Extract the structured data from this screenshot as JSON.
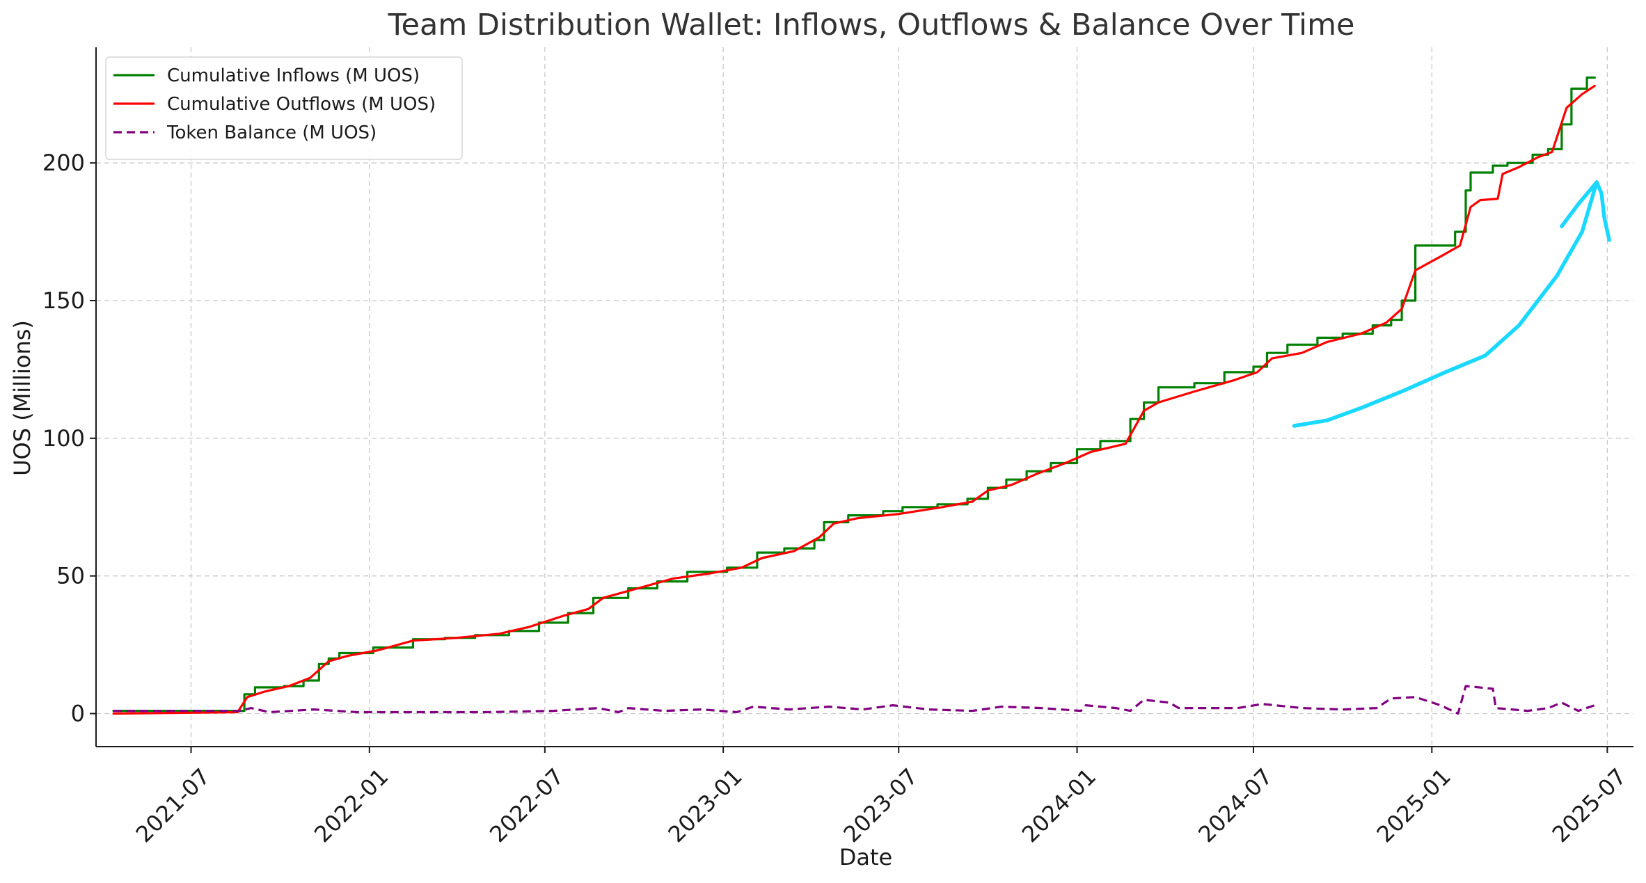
{
  "chart_data": {
    "type": "line",
    "title": "Team Distribution Wallet: Inflows, Outflows & Balance Over Time",
    "xlabel": "Date",
    "ylabel": "UOS (Millions)",
    "x_range": [
      "2021-03-25",
      "2025-07-28"
    ],
    "ylim": [
      -12,
      242
    ],
    "x_ticks": [
      "2021-07",
      "2022-01",
      "2022-07",
      "2023-01",
      "2023-07",
      "2024-01",
      "2024-07",
      "2025-01",
      "2025-07"
    ],
    "y_ticks": [
      0,
      50,
      100,
      150,
      200
    ],
    "grid": true,
    "legend_position": "top-left",
    "series": [
      {
        "name": "Cumulative Inflows (M UOS)",
        "color": "#008000",
        "style": "step",
        "points": [
          [
            "2021-04-12",
            1
          ],
          [
            "2021-08-18",
            1
          ],
          [
            "2021-08-25",
            7
          ],
          [
            "2021-09-05",
            9.5
          ],
          [
            "2021-10-05",
            10
          ],
          [
            "2021-10-25",
            12
          ],
          [
            "2021-11-10",
            18
          ],
          [
            "2021-11-20",
            20
          ],
          [
            "2021-12-01",
            22
          ],
          [
            "2022-01-05",
            24
          ],
          [
            "2022-02-15",
            27
          ],
          [
            "2022-03-20",
            27.5
          ],
          [
            "2022-04-20",
            28.5
          ],
          [
            "2022-05-25",
            30
          ],
          [
            "2022-06-25",
            33
          ],
          [
            "2022-07-25",
            36.5
          ],
          [
            "2022-08-20",
            42
          ],
          [
            "2022-09-25",
            45.5
          ],
          [
            "2022-10-25",
            48
          ],
          [
            "2022-11-25",
            51.5
          ],
          [
            "2023-01-05",
            53
          ],
          [
            "2023-02-05",
            58.5
          ],
          [
            "2023-03-05",
            60
          ],
          [
            "2023-04-05",
            63
          ],
          [
            "2023-04-15",
            69.5
          ],
          [
            "2023-05-10",
            72
          ],
          [
            "2023-06-15",
            73.5
          ],
          [
            "2023-07-05",
            75
          ],
          [
            "2023-08-10",
            76
          ],
          [
            "2023-09-10",
            78
          ],
          [
            "2023-10-01",
            82
          ],
          [
            "2023-10-20",
            85
          ],
          [
            "2023-11-10",
            88
          ],
          [
            "2023-12-05",
            91
          ],
          [
            "2024-01-01",
            96
          ],
          [
            "2024-01-25",
            99
          ],
          [
            "2024-02-25",
            107
          ],
          [
            "2024-03-10",
            113
          ],
          [
            "2024-03-25",
            118.5
          ],
          [
            "2024-05-01",
            120
          ],
          [
            "2024-06-01",
            124
          ],
          [
            "2024-07-01",
            126
          ],
          [
            "2024-07-15",
            131
          ],
          [
            "2024-08-05",
            134
          ],
          [
            "2024-09-05",
            136.5
          ],
          [
            "2024-10-01",
            138
          ],
          [
            "2024-11-01",
            141
          ],
          [
            "2024-11-20",
            143
          ],
          [
            "2024-12-01",
            150
          ],
          [
            "2024-12-15",
            170
          ],
          [
            "2025-01-25",
            175
          ],
          [
            "2025-02-05",
            190
          ],
          [
            "2025-02-10",
            196.5
          ],
          [
            "2025-03-05",
            199
          ],
          [
            "2025-03-20",
            200
          ],
          [
            "2025-04-15",
            203
          ],
          [
            "2025-05-01",
            205
          ],
          [
            "2025-05-15",
            214
          ],
          [
            "2025-05-25",
            227
          ],
          [
            "2025-06-10",
            231
          ],
          [
            "2025-06-18",
            231
          ]
        ]
      },
      {
        "name": "Cumulative Outflows (M UOS)",
        "color": "#ff0000",
        "style": "line",
        "points": [
          [
            "2021-04-12",
            0
          ],
          [
            "2021-08-18",
            0.5
          ],
          [
            "2021-08-28",
            6
          ],
          [
            "2021-09-15",
            8
          ],
          [
            "2021-10-10",
            10
          ],
          [
            "2021-11-01",
            13
          ],
          [
            "2021-11-20",
            19
          ],
          [
            "2021-12-10",
            21
          ],
          [
            "2022-01-10",
            23
          ],
          [
            "2022-02-15",
            26.5
          ],
          [
            "2022-04-01",
            27.5
          ],
          [
            "2022-05-15",
            29
          ],
          [
            "2022-06-15",
            31.5
          ],
          [
            "2022-07-20",
            35.5
          ],
          [
            "2022-08-15",
            38
          ],
          [
            "2022-08-30",
            42
          ],
          [
            "2022-10-05",
            45.5
          ],
          [
            "2022-11-10",
            49
          ],
          [
            "2022-12-20",
            51
          ],
          [
            "2023-01-20",
            53
          ],
          [
            "2023-02-10",
            56.5
          ],
          [
            "2023-03-15",
            59
          ],
          [
            "2023-04-10",
            64
          ],
          [
            "2023-04-25",
            69
          ],
          [
            "2023-05-20",
            71
          ],
          [
            "2023-07-01",
            72.5
          ],
          [
            "2023-08-15",
            75
          ],
          [
            "2023-09-15",
            77
          ],
          [
            "2023-10-01",
            81
          ],
          [
            "2023-10-25",
            83
          ],
          [
            "2023-11-20",
            87
          ],
          [
            "2023-12-20",
            91
          ],
          [
            "2024-01-15",
            95
          ],
          [
            "2024-02-20",
            98
          ],
          [
            "2024-03-10",
            110
          ],
          [
            "2024-03-25",
            113
          ],
          [
            "2024-05-01",
            117
          ],
          [
            "2024-06-10",
            121
          ],
          [
            "2024-07-05",
            124
          ],
          [
            "2024-07-20",
            129
          ],
          [
            "2024-08-20",
            131
          ],
          [
            "2024-09-15",
            135
          ],
          [
            "2024-10-20",
            138
          ],
          [
            "2024-11-15",
            142
          ],
          [
            "2024-12-01",
            147
          ],
          [
            "2024-12-15",
            161
          ],
          [
            "2025-01-10",
            166
          ],
          [
            "2025-01-30",
            170
          ],
          [
            "2025-02-10",
            184
          ],
          [
            "2025-02-20",
            186.5
          ],
          [
            "2025-03-10",
            187
          ],
          [
            "2025-03-15",
            196
          ],
          [
            "2025-04-01",
            198.5
          ],
          [
            "2025-04-20",
            202
          ],
          [
            "2025-05-05",
            204
          ],
          [
            "2025-05-20",
            220
          ],
          [
            "2025-06-05",
            225
          ],
          [
            "2025-06-18",
            228
          ]
        ]
      },
      {
        "name": "Token Balance (M UOS)",
        "color": "#800080",
        "style": "dashed",
        "points": [
          [
            "2021-04-12",
            1
          ],
          [
            "2021-08-20",
            1
          ],
          [
            "2021-09-01",
            2
          ],
          [
            "2021-09-20",
            0.5
          ],
          [
            "2021-11-05",
            1.5
          ],
          [
            "2021-12-20",
            0.5
          ],
          [
            "2022-03-01",
            0.5
          ],
          [
            "2022-05-01",
            0.5
          ],
          [
            "2022-07-10",
            1
          ],
          [
            "2022-08-25",
            2
          ],
          [
            "2022-09-15",
            0.5
          ],
          [
            "2022-09-25",
            2
          ],
          [
            "2022-11-01",
            1
          ],
          [
            "2022-12-10",
            1.5
          ],
          [
            "2023-01-15",
            0.5
          ],
          [
            "2023-02-01",
            2.5
          ],
          [
            "2023-03-10",
            1.5
          ],
          [
            "2023-04-20",
            2.5
          ],
          [
            "2023-05-25",
            1.5
          ],
          [
            "2023-06-25",
            3
          ],
          [
            "2023-08-01",
            1.5
          ],
          [
            "2023-09-15",
            1
          ],
          [
            "2023-10-15",
            2.5
          ],
          [
            "2023-11-25",
            2
          ],
          [
            "2024-01-05",
            1
          ],
          [
            "2024-01-10",
            3
          ],
          [
            "2024-02-10",
            2
          ],
          [
            "2024-02-25",
            1
          ],
          [
            "2024-03-10",
            5
          ],
          [
            "2024-04-05",
            4
          ],
          [
            "2024-04-15",
            2
          ],
          [
            "2024-06-15",
            2
          ],
          [
            "2024-07-10",
            3.5
          ],
          [
            "2024-08-20",
            2
          ],
          [
            "2024-10-01",
            1.5
          ],
          [
            "2024-11-05",
            2
          ],
          [
            "2024-11-20",
            5.5
          ],
          [
            "2024-12-15",
            6
          ],
          [
            "2025-01-10",
            3
          ],
          [
            "2025-01-28",
            0
          ],
          [
            "2025-02-05",
            10
          ],
          [
            "2025-03-05",
            9
          ],
          [
            "2025-03-08",
            2
          ],
          [
            "2025-04-10",
            1
          ],
          [
            "2025-05-01",
            2
          ],
          [
            "2025-05-15",
            4
          ],
          [
            "2025-06-01",
            1
          ],
          [
            "2025-06-18",
            3
          ]
        ]
      },
      {
        "name": "",
        "color": "#1ad8ff",
        "style": "overlay",
        "points": [
          [
            "2024-08-12",
            104.5
          ],
          [
            "2024-09-15",
            106.5
          ],
          [
            "2024-10-20",
            111
          ],
          [
            "2024-12-01",
            117
          ],
          [
            "2025-01-15",
            124
          ],
          [
            "2025-02-25",
            130
          ],
          [
            "2025-04-01",
            141
          ],
          [
            "2025-05-10",
            159
          ],
          [
            "2025-06-05",
            175
          ],
          [
            "2025-06-20",
            193
          ],
          [
            "2025-06-25",
            189
          ],
          [
            "2025-06-28",
            180
          ],
          [
            "2025-07-03",
            172
          ]
        ],
        "points_upper": [
          [
            "2025-05-15",
            177
          ],
          [
            "2025-06-01",
            185
          ],
          [
            "2025-06-20",
            193
          ]
        ]
      }
    ]
  }
}
